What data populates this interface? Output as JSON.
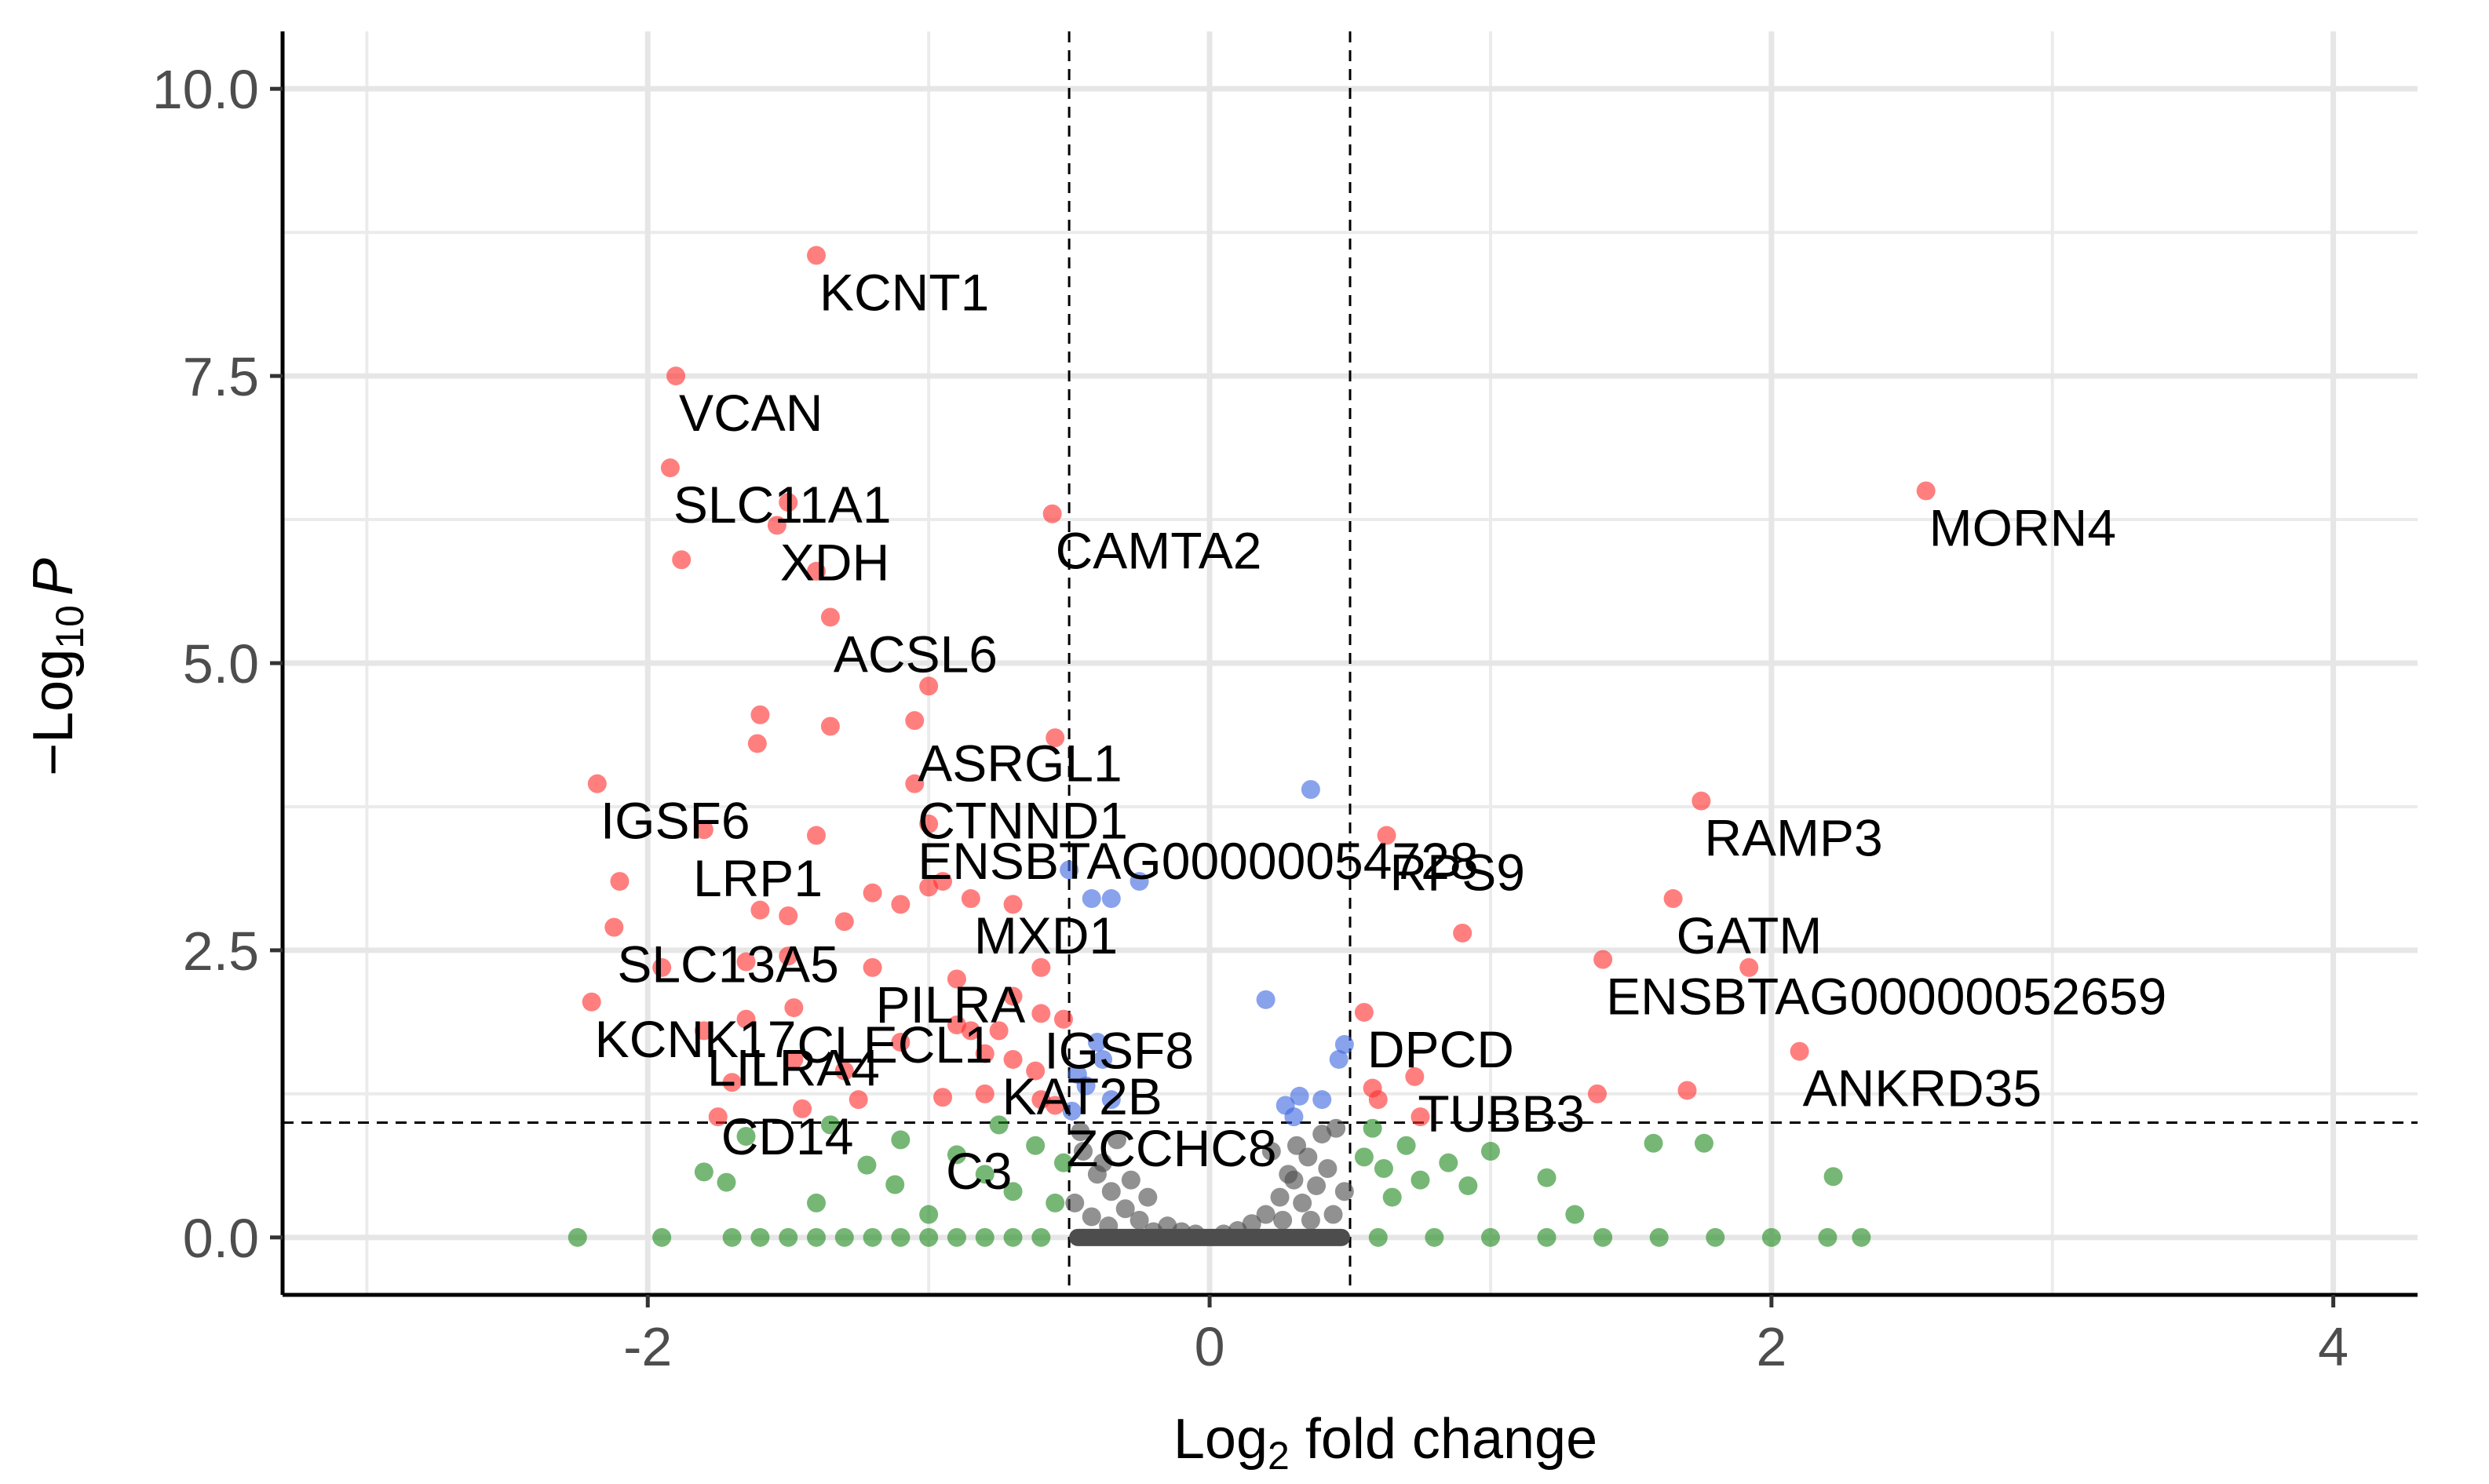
{
  "chart_data": {
    "type": "scatter",
    "subtype": "volcano",
    "title": "",
    "xlabel": "Log2 fold change",
    "xlabel_parts": {
      "base": "Log",
      "subscript": "2",
      "rest": " fold change"
    },
    "ylabel": "-Log10 P",
    "ylabel_parts": {
      "prefix": "−Log",
      "subscript": "10",
      "italic": "P"
    },
    "xlim": [
      -3.3,
      4.3
    ],
    "ylim": [
      -0.5,
      10.5
    ],
    "x_ticks": [
      -2,
      0,
      2,
      4
    ],
    "x_tick_labels": [
      "-2",
      "0",
      "2",
      "4"
    ],
    "y_ticks": [
      0,
      2.5,
      5,
      7.5,
      10
    ],
    "y_tick_labels": [
      "0.0",
      "2.5",
      "5.0",
      "7.5",
      "10.0"
    ],
    "fc_cutoff": 0.5,
    "p_cutoff": 1.0,
    "grid": true,
    "colors": {
      "NS": "#4d4d4d",
      "Log2FC": "#228b22",
      "P": "#4169e1",
      "P_and_Log2FC": "#ff3030"
    },
    "series": [
      {
        "name": "NS",
        "points": [
          [
            -0.45,
            0.75
          ],
          [
            -0.4,
            0.55
          ],
          [
            -0.35,
            0.4
          ],
          [
            -0.3,
            0.25
          ],
          [
            -0.25,
            0.15
          ],
          [
            -0.2,
            0.05
          ],
          [
            -0.48,
            0.3
          ],
          [
            -0.42,
            0.18
          ],
          [
            -0.38,
            0.65
          ],
          [
            -0.33,
            0.85
          ],
          [
            -0.28,
            0.5
          ],
          [
            -0.22,
            0.35
          ],
          [
            -0.15,
            0.1
          ],
          [
            -0.1,
            0.05
          ],
          [
            -0.05,
            0.03
          ],
          [
            0.05,
            0.03
          ],
          [
            0.1,
            0.06
          ],
          [
            0.15,
            0.12
          ],
          [
            0.2,
            0.2
          ],
          [
            0.25,
            0.35
          ],
          [
            0.3,
            0.5
          ],
          [
            0.35,
            0.7
          ],
          [
            0.4,
            0.9
          ],
          [
            0.45,
            0.95
          ],
          [
            0.42,
            0.6
          ],
          [
            0.38,
            0.45
          ],
          [
            0.33,
            0.3
          ],
          [
            0.28,
            0.55
          ],
          [
            0.22,
            0.75
          ],
          [
            0.48,
            0.4
          ],
          [
            0.44,
            0.2
          ],
          [
            0.36,
            0.15
          ],
          [
            -0.46,
            0.92
          ],
          [
            -0.36,
            0.1
          ],
          [
            0.31,
            0.8
          ],
          [
            0.26,
            0.15
          ]
        ]
      },
      {
        "name": "Log2FC",
        "points": [
          [
            -2.25,
            0.0
          ],
          [
            -1.95,
            0.0
          ],
          [
            -1.7,
            0.0
          ],
          [
            -1.6,
            0.0
          ],
          [
            -1.5,
            0.0
          ],
          [
            -1.4,
            0.0
          ],
          [
            -1.3,
            0.0
          ],
          [
            -1.2,
            0.0
          ],
          [
            -1.1,
            0.0
          ],
          [
            -1.0,
            0.0
          ],
          [
            -0.9,
            0.0
          ],
          [
            -0.8,
            0.0
          ],
          [
            -0.7,
            0.0
          ],
          [
            -0.6,
            0.0
          ],
          [
            0.6,
            0.0
          ],
          [
            0.8,
            0.0
          ],
          [
            1.0,
            0.0
          ],
          [
            1.2,
            0.0
          ],
          [
            1.4,
            0.0
          ],
          [
            1.6,
            0.0
          ],
          [
            1.8,
            0.0
          ],
          [
            2.0,
            0.0
          ],
          [
            2.2,
            0.0
          ],
          [
            2.32,
            0.0
          ],
          [
            -1.8,
            0.57
          ],
          [
            -1.72,
            0.48
          ],
          [
            -1.65,
            0.88
          ],
          [
            -1.35,
            0.98
          ],
          [
            -1.1,
            0.85
          ],
          [
            -1.12,
            0.46
          ],
          [
            -1.22,
            0.63
          ],
          [
            -0.9,
            0.72
          ],
          [
            -0.8,
            0.55
          ],
          [
            -0.75,
            0.98
          ],
          [
            -0.7,
            0.4
          ],
          [
            -0.62,
            0.8
          ],
          [
            -0.55,
            0.3
          ],
          [
            -0.52,
            0.65
          ],
          [
            0.55,
            0.7
          ],
          [
            0.58,
            0.95
          ],
          [
            0.62,
            0.6
          ],
          [
            0.65,
            0.35
          ],
          [
            0.7,
            0.8
          ],
          [
            0.75,
            0.5
          ],
          [
            0.85,
            0.65
          ],
          [
            0.92,
            0.45
          ],
          [
            1.0,
            0.75
          ],
          [
            1.2,
            0.52
          ],
          [
            1.58,
            0.82
          ],
          [
            1.76,
            0.82
          ],
          [
            2.22,
            0.53
          ],
          [
            -1.4,
            0.3
          ],
          [
            -1.0,
            0.2
          ],
          [
            1.3,
            0.2
          ]
        ]
      },
      {
        "name": "P",
        "points": [
          [
            -0.49,
            1.1
          ],
          [
            -0.44,
            1.32
          ],
          [
            -0.4,
            1.7
          ],
          [
            -0.38,
            1.55
          ],
          [
            -0.35,
            1.2
          ],
          [
            -0.47,
            1.42
          ],
          [
            -0.42,
            2.95
          ],
          [
            -0.35,
            2.95
          ],
          [
            -0.5,
            3.2
          ],
          [
            -0.25,
            3.1
          ],
          [
            0.2,
            2.07
          ],
          [
            0.3,
            1.05
          ],
          [
            0.32,
            1.23
          ],
          [
            0.4,
            1.2
          ],
          [
            0.46,
            1.55
          ],
          [
            0.48,
            1.68
          ],
          [
            0.36,
            3.9
          ],
          [
            0.27,
            1.15
          ]
        ]
      },
      {
        "name": "P_and_Log2FC",
        "points": [
          [
            -1.4,
            8.55
          ],
          [
            -1.9,
            7.5
          ],
          [
            -1.92,
            6.7
          ],
          [
            -1.5,
            6.4
          ],
          [
            -1.54,
            6.2
          ],
          [
            -1.88,
            5.9
          ],
          [
            -1.4,
            5.8
          ],
          [
            -1.35,
            5.4
          ],
          [
            -1.0,
            4.8
          ],
          [
            -1.05,
            4.5
          ],
          [
            -1.6,
            4.55
          ],
          [
            -1.61,
            4.3
          ],
          [
            -1.35,
            4.45
          ],
          [
            -0.55,
            4.35
          ],
          [
            -1.05,
            3.95
          ],
          [
            -2.18,
            3.95
          ],
          [
            -1.0,
            3.6
          ],
          [
            -1.4,
            3.5
          ],
          [
            -1.8,
            3.55
          ],
          [
            -2.1,
            3.1
          ],
          [
            -2.12,
            2.7
          ],
          [
            -1.2,
            3.0
          ],
          [
            -1.0,
            3.05
          ],
          [
            -0.95,
            3.1
          ],
          [
            -0.85,
            2.95
          ],
          [
            -1.1,
            2.9
          ],
          [
            -1.5,
            2.8
          ],
          [
            -1.6,
            2.85
          ],
          [
            -1.3,
            2.75
          ],
          [
            -0.7,
            2.9
          ],
          [
            -1.65,
            2.4
          ],
          [
            -1.95,
            2.35
          ],
          [
            -1.5,
            2.45
          ],
          [
            -1.2,
            2.35
          ],
          [
            -0.9,
            2.25
          ],
          [
            -0.6,
            2.35
          ],
          [
            -0.7,
            2.1
          ],
          [
            -1.48,
            2.0
          ],
          [
            -1.65,
            1.9
          ],
          [
            -0.85,
            1.8
          ],
          [
            -0.75,
            1.8
          ],
          [
            -0.6,
            1.95
          ],
          [
            -0.52,
            1.9
          ],
          [
            -1.8,
            1.8
          ],
          [
            -1.48,
            1.55
          ],
          [
            -1.3,
            1.45
          ],
          [
            -0.8,
            1.6
          ],
          [
            -0.7,
            1.55
          ],
          [
            -0.62,
            1.45
          ],
          [
            -1.25,
            1.2
          ],
          [
            -1.7,
            1.35
          ],
          [
            -1.75,
            1.05
          ],
          [
            -0.95,
            1.22
          ],
          [
            -0.8,
            1.25
          ],
          [
            -0.6,
            1.2
          ],
          [
            -1.45,
            1.12
          ],
          [
            -0.55,
            1.15
          ],
          [
            -2.2,
            2.05
          ],
          [
            -0.9,
            1.85
          ],
          [
            -1.1,
            1.7
          ],
          [
            -0.56,
            6.3
          ],
          [
            0.63,
            3.5
          ],
          [
            0.9,
            2.65
          ],
          [
            0.55,
            1.96
          ],
          [
            0.58,
            1.3
          ],
          [
            0.6,
            1.2
          ],
          [
            0.73,
            1.4
          ],
          [
            0.75,
            1.05
          ],
          [
            1.4,
            2.42
          ],
          [
            1.65,
            2.95
          ],
          [
            1.75,
            3.8
          ],
          [
            1.92,
            2.35
          ],
          [
            2.55,
            6.5
          ],
          [
            2.1,
            1.62
          ],
          [
            1.38,
            1.25
          ],
          [
            1.7,
            1.28
          ]
        ]
      }
    ],
    "labels": [
      {
        "gene": "KCNT1",
        "x": -1.4,
        "y": 8.55
      },
      {
        "gene": "VCAN",
        "x": -1.9,
        "y": 7.5
      },
      {
        "gene": "SLC11A1",
        "x": -1.92,
        "y": 6.7
      },
      {
        "gene": "XDH",
        "x": -1.54,
        "y": 6.2
      },
      {
        "gene": "CAMTA2",
        "x": -0.56,
        "y": 6.3
      },
      {
        "gene": "MORN4",
        "x": 2.55,
        "y": 6.5
      },
      {
        "gene": "ACSL6",
        "x": -1.35,
        "y": 5.4
      },
      {
        "gene": "ASRGL1",
        "x": -1.05,
        "y": 4.45
      },
      {
        "gene": "CTNND1",
        "x": -1.05,
        "y": 3.95
      },
      {
        "gene": "IGSF6",
        "x": -2.18,
        "y": 3.95
      },
      {
        "gene": "ENSBTAG00000054728",
        "x": -1.05,
        "y": 3.6
      },
      {
        "gene": "LRP1",
        "x": -1.85,
        "y": 3.45
      },
      {
        "gene": "RAMP3",
        "x": 1.75,
        "y": 3.8
      },
      {
        "gene": "RPS9",
        "x": 0.63,
        "y": 3.5
      },
      {
        "gene": "SLC13A5",
        "x": -2.12,
        "y": 2.7
      },
      {
        "gene": "MXD1",
        "x": -0.85,
        "y": 2.95
      },
      {
        "gene": "GATM",
        "x": 1.65,
        "y": 2.95
      },
      {
        "gene": "KCNK17",
        "x": -2.2,
        "y": 2.05
      },
      {
        "gene": "PILRA",
        "x": -1.2,
        "y": 2.35
      },
      {
        "gene": "ENSBTAG00000052659",
        "x": 1.4,
        "y": 2.42
      },
      {
        "gene": "CLECL1",
        "x": -1.48,
        "y": 2.0
      },
      {
        "gene": "IGSF8",
        "x": -0.6,
        "y": 1.95
      },
      {
        "gene": "DPCD",
        "x": 0.55,
        "y": 1.96
      },
      {
        "gene": "LILRA4",
        "x": -1.8,
        "y": 1.8
      },
      {
        "gene": "ANKRD35",
        "x": 2.1,
        "y": 1.62
      },
      {
        "gene": "KAT2B",
        "x": -0.75,
        "y": 1.55
      },
      {
        "gene": "TUBB3",
        "x": 0.73,
        "y": 1.4
      },
      {
        "gene": "CD14",
        "x": -1.75,
        "y": 1.2
      },
      {
        "gene": "ZCCHC8",
        "x": -0.52,
        "y": 1.1
      },
      {
        "gene": "C3",
        "x": -0.95,
        "y": 0.9
      }
    ]
  }
}
